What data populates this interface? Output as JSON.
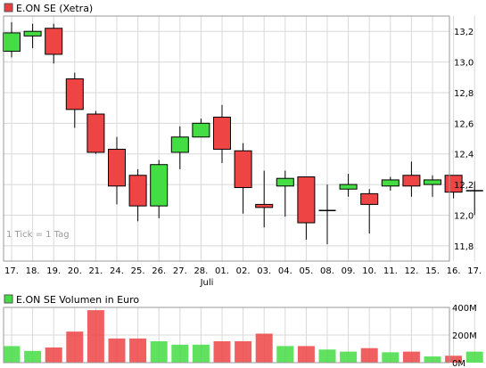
{
  "chart_data": [
    {
      "type": "candlestick",
      "legend": {
        "label": "E.ON SE (Xetra)",
        "swatch_color": "#e84040"
      },
      "note": "1 Tick = 1 Tag",
      "colors": {
        "up": "#44dd44",
        "down": "#ee4444",
        "neutral": "#000000",
        "grid": "#d8d8d8"
      },
      "ylim": [
        11.7,
        13.3
      ],
      "yticks": [
        "13,2",
        "13,0",
        "12,8",
        "12,6",
        "12,4",
        "12,2",
        "12,0",
        "11,8"
      ],
      "ytick_values": [
        13.2,
        13.0,
        12.8,
        12.6,
        12.4,
        12.2,
        12.0,
        11.8
      ],
      "xlabel_month": "Juli",
      "categories": [
        "17.",
        "18.",
        "19.",
        "20.",
        "21.",
        "24.",
        "25.",
        "26.",
        "27.",
        "28.",
        "01.",
        "02.",
        "03.",
        "04.",
        "05.",
        "08.",
        "09.",
        "10.",
        "11.",
        "12.",
        "15.",
        "16.",
        "17."
      ],
      "candles": [
        {
          "open": 13.07,
          "high": 13.26,
          "low": 13.03,
          "close": 13.19
        },
        {
          "open": 13.17,
          "high": 13.25,
          "low": 13.09,
          "close": 13.2
        },
        {
          "open": 13.22,
          "high": 13.25,
          "low": 12.99,
          "close": 13.05
        },
        {
          "open": 12.89,
          "high": 12.93,
          "low": 12.57,
          "close": 12.69
        },
        {
          "open": 12.66,
          "high": 12.68,
          "low": 12.4,
          "close": 12.41
        },
        {
          "open": 12.43,
          "high": 12.51,
          "low": 12.07,
          "close": 12.19
        },
        {
          "open": 12.26,
          "high": 12.3,
          "low": 11.96,
          "close": 12.06
        },
        {
          "open": 12.06,
          "high": 12.36,
          "low": 11.98,
          "close": 12.33
        },
        {
          "open": 12.41,
          "high": 12.58,
          "low": 12.3,
          "close": 12.51
        },
        {
          "open": 12.51,
          "high": 12.63,
          "low": 12.51,
          "close": 12.6
        },
        {
          "open": 12.64,
          "high": 12.72,
          "low": 12.34,
          "close": 12.43
        },
        {
          "open": 12.42,
          "high": 12.47,
          "low": 12.01,
          "close": 12.18
        },
        {
          "open": 12.07,
          "high": 12.29,
          "low": 11.92,
          "close": 12.05
        },
        {
          "open": 12.19,
          "high": 12.29,
          "low": 11.99,
          "close": 12.24
        },
        {
          "open": 12.25,
          "high": 12.25,
          "low": 11.84,
          "close": 11.95
        },
        {
          "open": 12.03,
          "high": 12.2,
          "low": 11.81,
          "close": 12.03
        },
        {
          "open": 12.17,
          "high": 12.27,
          "low": 12.12,
          "close": 12.2
        },
        {
          "open": 12.14,
          "high": 12.17,
          "low": 11.88,
          "close": 12.07
        },
        {
          "open": 12.19,
          "high": 12.25,
          "low": 12.16,
          "close": 12.23
        },
        {
          "open": 12.26,
          "high": 12.35,
          "low": 12.12,
          "close": 12.19
        },
        {
          "open": 12.2,
          "high": 12.26,
          "low": 12.12,
          "close": 12.23
        },
        {
          "open": 12.26,
          "high": 12.26,
          "low": 12.11,
          "close": 12.15
        },
        {
          "open": 12.16,
          "high": 12.22,
          "low": 12.0,
          "close": 12.16
        }
      ]
    },
    {
      "type": "bar",
      "legend": {
        "label": "E.ON SE Volumen in Euro",
        "swatch_color": "#44dd44"
      },
      "ylim": [
        0,
        400
      ],
      "yticks": [
        "400M",
        "200M",
        "0M"
      ],
      "ytick_values": [
        400,
        200,
        0
      ],
      "unit": "M",
      "categories": [
        "17.",
        "18.",
        "19.",
        "20.",
        "21.",
        "24.",
        "25.",
        "26.",
        "27.",
        "28.",
        "01.",
        "02.",
        "03.",
        "04.",
        "05.",
        "08.",
        "09.",
        "10.",
        "11.",
        "12.",
        "15.",
        "16.",
        "17."
      ],
      "values": [
        120,
        85,
        110,
        225,
        380,
        175,
        175,
        155,
        130,
        130,
        155,
        155,
        210,
        120,
        120,
        95,
        80,
        105,
        75,
        80,
        45,
        50,
        80
      ],
      "bar_colors": [
        "up",
        "up",
        "down",
        "down",
        "down",
        "down",
        "down",
        "up",
        "up",
        "up",
        "down",
        "down",
        "down",
        "up",
        "down",
        "up",
        "up",
        "down",
        "up",
        "down",
        "up",
        "down",
        "up"
      ]
    }
  ]
}
